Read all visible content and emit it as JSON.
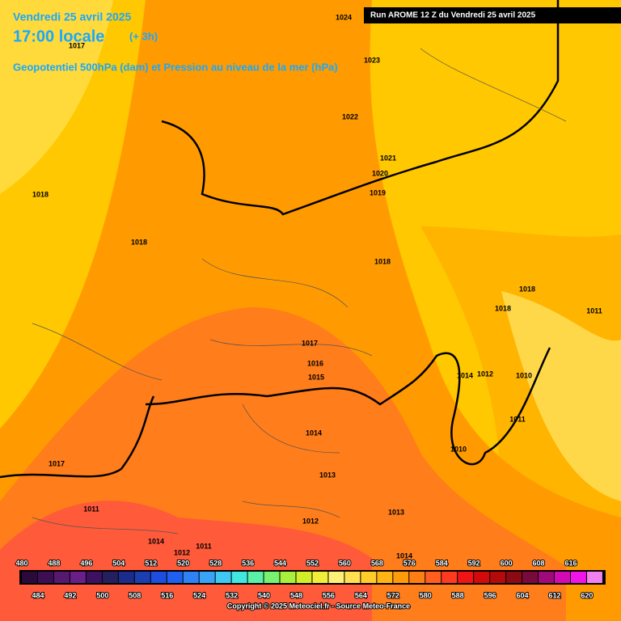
{
  "header": {
    "date": "Vendredi 25 avril 2025",
    "time": "17:00 locale",
    "offset": "(+ 3h)",
    "subtitle": "Geopotentiel 500hPa (dam) et Pression au niveau de la mer (hPa)",
    "run": "Run AROME 12 Z du Vendredi 25 avril 2025"
  },
  "isobar_labels": [
    1024,
    1017,
    1023,
    1022,
    1021,
    1020,
    1019,
    1018,
    1018,
    1018,
    1018,
    1018,
    1011,
    1017,
    1016,
    1015,
    1014,
    1012,
    1010,
    1011,
    1014,
    1010,
    1017,
    1013,
    1011,
    1012,
    1013,
    1014,
    1011,
    1012,
    1014
  ],
  "colorbar": {
    "levels": [
      480,
      484,
      488,
      492,
      496,
      500,
      504,
      508,
      512,
      516,
      520,
      524,
      528,
      532,
      536,
      540,
      544,
      548,
      552,
      556,
      560,
      564,
      568,
      572,
      576,
      580,
      584,
      588,
      592,
      596,
      600,
      604,
      608,
      612,
      616,
      620
    ],
    "colors": [
      "#2a0a3a",
      "#3c0f55",
      "#551a70",
      "#6a1f88",
      "#3d1060",
      "#24205e",
      "#1c2c8a",
      "#1b3fb0",
      "#1e4ee0",
      "#2060f0",
      "#2f82f5",
      "#39a4f7",
      "#3fc8f2",
      "#42e6e0",
      "#5af0a8",
      "#78f070",
      "#a8f03c",
      "#d2ee28",
      "#f0ee3a",
      "#fff078",
      "#ffe050",
      "#ffcc2a",
      "#ffb414",
      "#ff9a0a",
      "#ff7e14",
      "#ff5e1e",
      "#ff3a1e",
      "#f01414",
      "#d20a0a",
      "#b40a0a",
      "#8c0a14",
      "#780a3c",
      "#a00a78",
      "#d20ab4",
      "#f014e6",
      "#f082f0"
    ]
  },
  "footer": {
    "copyright": "Copyright © 2025 Meteociel.fr - Source Meteo-France"
  }
}
